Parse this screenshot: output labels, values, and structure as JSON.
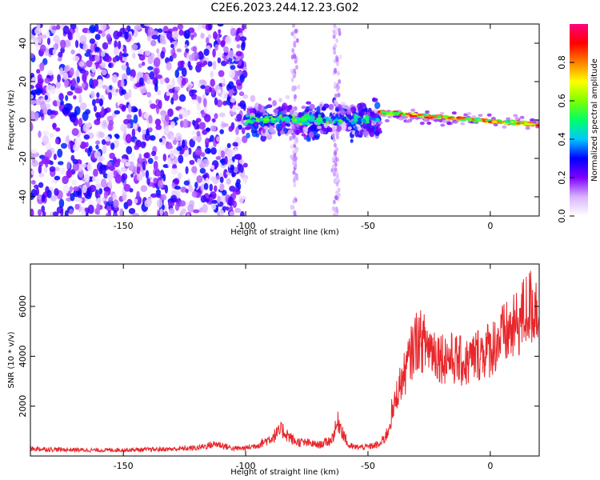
{
  "figure": {
    "title": "C2E6.2023.244.12.23.G02"
  },
  "chart_data": [
    {
      "type": "heatmap",
      "title": "",
      "xlabel": "Height of straight line (km)",
      "ylabel": "Frequency (Hz)",
      "xlim": [
        -188,
        20
      ],
      "ylim": [
        -50,
        50
      ],
      "x_ticks": [
        -150,
        -100,
        -50,
        0
      ],
      "y_ticks": [
        -40,
        -20,
        0,
        20,
        40
      ],
      "colorbar": {
        "label": "Normalized spectral amplitude",
        "range": [
          0,
          1
        ],
        "ticks": [
          0.0,
          0.2,
          0.4,
          0.6,
          0.8
        ],
        "colormap": [
          "#ffffff",
          "#d9b3ff",
          "#7f00ff",
          "#0000ff",
          "#00c8ff",
          "#00ff66",
          "#7fff00",
          "#ffff00",
          "#ff8000",
          "#ff0000",
          "#ff0080"
        ]
      },
      "regions": [
        {
          "x_range": [
            -188,
            -100
          ],
          "pattern": "broadband scattered noise",
          "freq_span": [
            -50,
            50
          ],
          "amplitude": 0.25
        },
        {
          "x_range": [
            -100,
            -45
          ],
          "pattern": "noise with central band",
          "freq_span": [
            -20,
            20
          ],
          "amplitude": 0.35
        },
        {
          "x_range": [
            -45,
            20
          ],
          "pattern": "narrow carrier line near 0 Hz, slight negative drift",
          "freq_span": [
            -6,
            6
          ],
          "amplitude": 0.9
        }
      ],
      "grid": false
    },
    {
      "type": "line",
      "title": "",
      "xlabel": "Height of straight line (km)",
      "ylabel": "SNR (10 * v/v)",
      "xlim": [
        -188,
        20
      ],
      "ylim": [
        0,
        7700
      ],
      "x_ticks": [
        -150,
        -100,
        -50,
        0
      ],
      "y_ticks": [
        2000,
        4000,
        6000
      ],
      "color": "#e8262a",
      "series": [
        {
          "name": "",
          "x": [
            -188,
            -175,
            -160,
            -150,
            -140,
            -130,
            -120,
            -112,
            -105,
            -100,
            -95,
            -90,
            -85,
            -80,
            -75,
            -70,
            -65,
            -62,
            -58,
            -55,
            -50,
            -45,
            -42,
            -40,
            -38,
            -35,
            -32,
            -30,
            -25,
            -20,
            -15,
            -10,
            -5,
            0,
            5,
            10,
            15,
            20
          ],
          "y": [
            250,
            220,
            200,
            210,
            220,
            240,
            280,
            420,
            260,
            270,
            380,
            600,
            900,
            500,
            450,
            380,
            550,
            1200,
            350,
            300,
            320,
            400,
            800,
            1600,
            2600,
            3300,
            4200,
            4700,
            4400,
            4000,
            3900,
            3700,
            4100,
            4300,
            4800,
            5100,
            5900,
            6100
          ]
        }
      ],
      "grid": false
    }
  ]
}
